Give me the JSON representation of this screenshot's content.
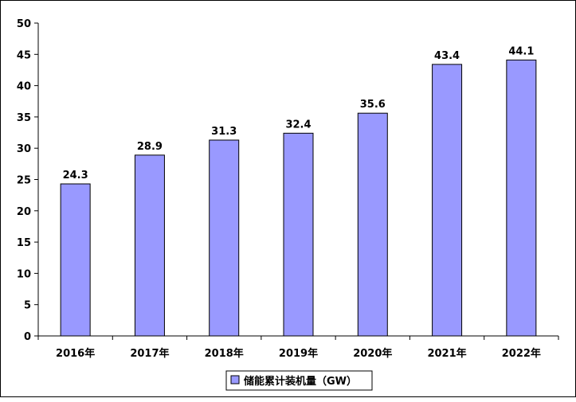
{
  "chart_data": {
    "type": "bar",
    "categories": [
      "2016年",
      "2017年",
      "2018年",
      "2019年",
      "2020年",
      "2021年",
      "2022年"
    ],
    "series": [
      {
        "name": "储能累计装机量（GW）",
        "values": [
          24.3,
          28.9,
          31.3,
          32.4,
          35.6,
          43.4,
          44.1
        ],
        "color": "#9999ff"
      }
    ],
    "data_labels": [
      "24.3",
      "28.9",
      "31.3",
      "32.4",
      "35.6",
      "43.4",
      "44.1"
    ],
    "ylim": [
      0,
      50
    ],
    "yticks": [
      0,
      5,
      10,
      15,
      20,
      25,
      30,
      35,
      40,
      45,
      50
    ],
    "legend_position": "bottom",
    "grid": false
  }
}
